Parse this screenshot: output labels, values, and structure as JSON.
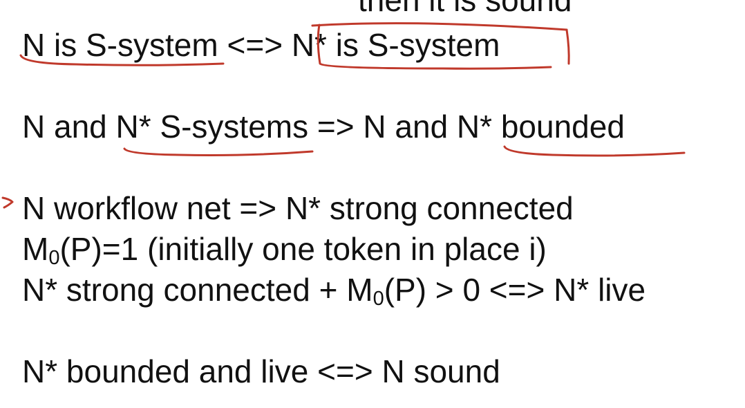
{
  "top_fragment": "then it is sound",
  "lines": {
    "l1": "N is S-system <=> N* is S-system",
    "l2": "N and N* S-systems => N and N* bounded",
    "l3": "N workflow net => N* strong connected",
    "l4": {
      "pre": "M",
      "sub": "0",
      "post": "(P)=1 (initially one token in place i)"
    },
    "l5": {
      "pre": "N* strong connected + M",
      "sub": "0",
      "post": "(P) > 0 <=> N* live"
    },
    "l6": "N* bounded and live <=> N sound"
  },
  "colors": {
    "text": "#111111",
    "annotation_ink": "#c0392b",
    "background": "#ffffff"
  }
}
